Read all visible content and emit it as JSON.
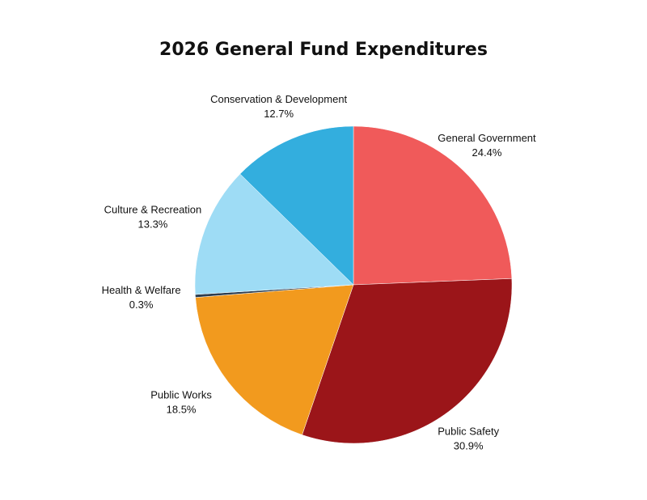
{
  "chart_data": {
    "type": "pie",
    "title": "2026 General Fund Expenditures",
    "categories": [
      "General Government",
      "Public Safety",
      "Public Works",
      "Health & Welfare",
      "Culture & Recreation",
      "Conservation & Development"
    ],
    "values": [
      24.4,
      30.9,
      18.5,
      0.3,
      13.3,
      12.7
    ],
    "value_labels": [
      "24.4%",
      "30.9%",
      "18.5%",
      "0.3%",
      "13.3%",
      "12.7%"
    ],
    "colors": [
      "#f05a5a",
      "#9b1519",
      "#f29a1e",
      "#2d3e50",
      "#9edcf5",
      "#33aede"
    ]
  }
}
